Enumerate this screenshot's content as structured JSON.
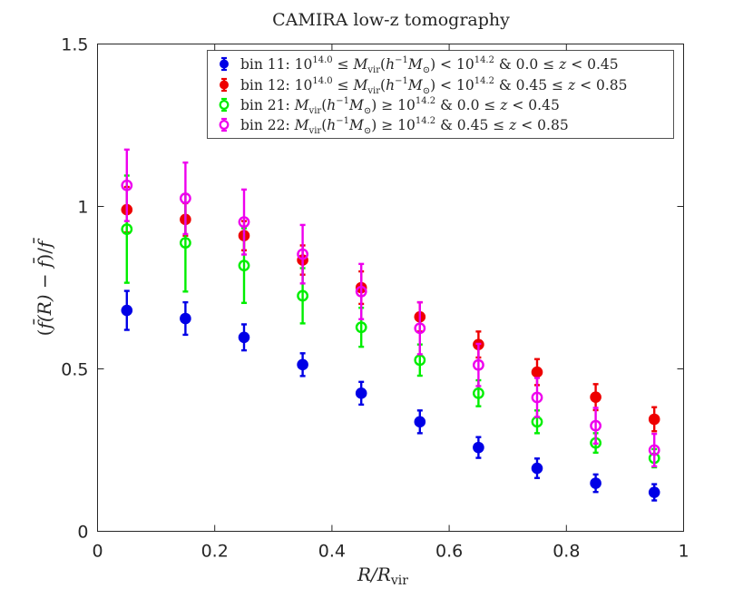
{
  "chart_data": {
    "type": "scatter",
    "title": "CAMIRA low-z tomography",
    "xlabel": "R/R_vir",
    "ylabel": "(f̄(R) − f̄)/f̄",
    "xlim": [
      0,
      1
    ],
    "ylim": [
      0,
      1.5
    ],
    "xticks": [
      0,
      0.2,
      0.4,
      0.6,
      0.8,
      1
    ],
    "xtick_labels": [
      "0",
      "0.2",
      "0.4",
      "0.6",
      "0.8",
      "1"
    ],
    "yticks": [
      0,
      0.5,
      1,
      1.5
    ],
    "ytick_labels": [
      "0",
      "0.5",
      "1",
      "1.5"
    ],
    "grid": false,
    "legend_position": "top-right",
    "x": [
      0.05,
      0.15,
      0.25,
      0.35,
      0.45,
      0.55,
      0.65,
      0.75,
      0.85,
      0.95
    ],
    "series": [
      {
        "name": "bin 11: 10^14.0 ≤ M_vir(h⁻¹M⊙) < 10^14.2 & 0.0 ≤ z < 0.45",
        "color": "#0000e6",
        "marker": "filled-circle",
        "values": [
          0.68,
          0.655,
          0.597,
          0.513,
          0.425,
          0.337,
          0.258,
          0.194,
          0.148,
          0.12
        ],
        "errors": [
          0.06,
          0.05,
          0.04,
          0.035,
          0.035,
          0.035,
          0.032,
          0.03,
          0.027,
          0.025
        ]
      },
      {
        "name": "bin 12: 10^14.0 ≤ M_vir(h⁻¹M⊙) < 10^14.2 & 0.45 ≤ z < 0.85",
        "color": "#ee0000",
        "marker": "filled-circle",
        "values": [
          0.99,
          0.96,
          0.91,
          0.835,
          0.75,
          0.66,
          0.575,
          0.49,
          0.413,
          0.345
        ],
        "errors": [
          0.07,
          0.05,
          0.045,
          0.045,
          0.05,
          0.045,
          0.04,
          0.04,
          0.04,
          0.037
        ]
      },
      {
        "name": "bin 21: M_vir(h⁻¹M⊙) ≥ 10^14.2 & 0.0 ≤ z < 0.45",
        "color": "#00ee00",
        "marker": "open-circle",
        "values": [
          0.93,
          0.888,
          0.818,
          0.725,
          0.628,
          0.527,
          0.425,
          0.337,
          0.272,
          0.225
        ],
        "errors": [
          0.165,
          0.15,
          0.115,
          0.085,
          0.06,
          0.048,
          0.04,
          0.035,
          0.03,
          0.028
        ]
      },
      {
        "name": "bin 22: M_vir(h⁻¹M⊙) ≥ 10^14.2 & 0.45 ≤ z < 0.85",
        "color": "#ee00ee",
        "marker": "open-circle",
        "values": [
          1.065,
          1.025,
          0.952,
          0.853,
          0.738,
          0.625,
          0.512,
          0.412,
          0.325,
          0.25
        ],
        "errors": [
          0.11,
          0.11,
          0.1,
          0.09,
          0.085,
          0.08,
          0.065,
          0.06,
          0.055,
          0.05
        ]
      }
    ]
  }
}
